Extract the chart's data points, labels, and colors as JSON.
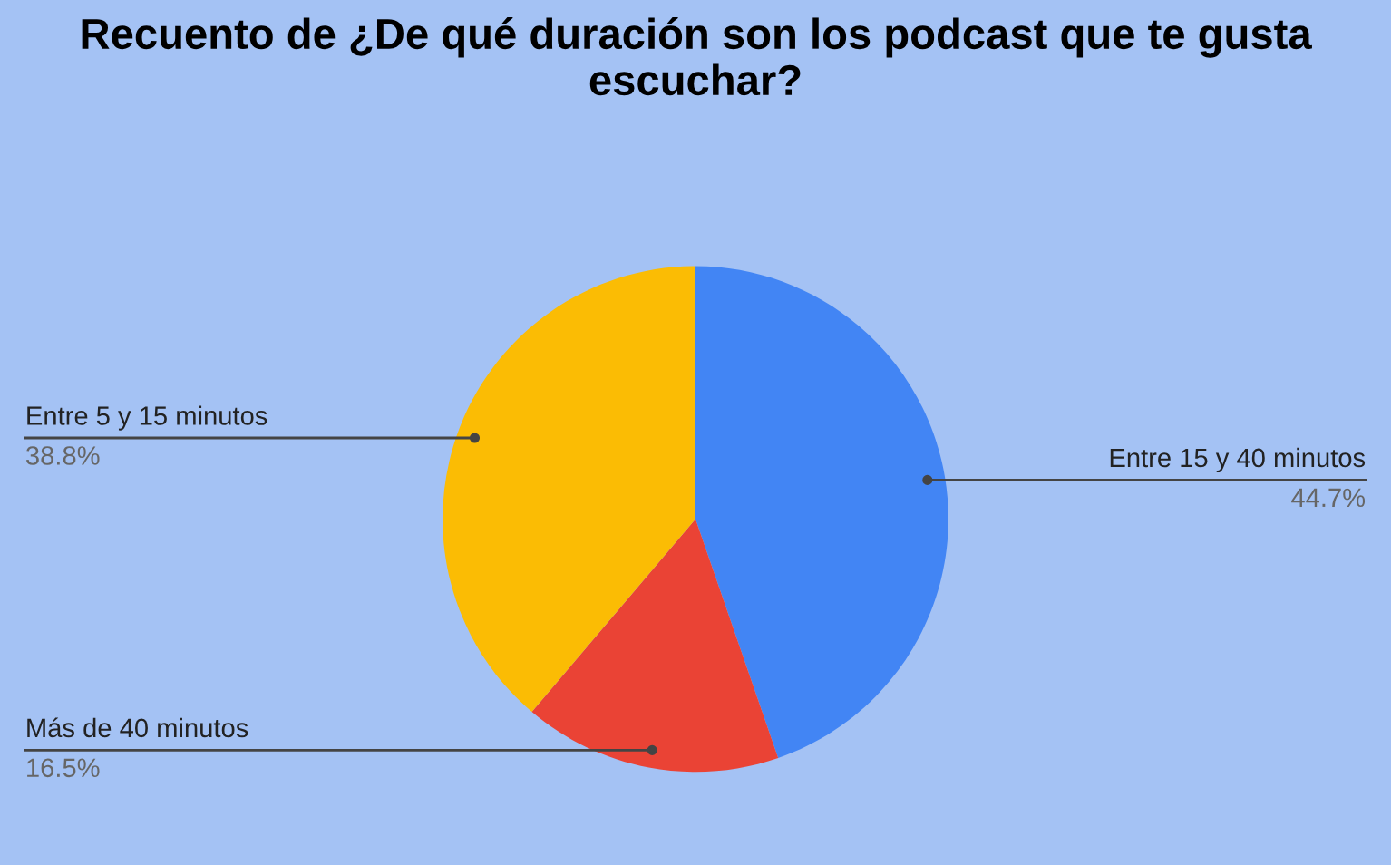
{
  "chart_data": {
    "type": "pie",
    "title": "Recuento de ¿De qué duración son los podcast que te gusta escuchar?",
    "categories": [
      "Entre 15 y 40 minutos",
      "Más de 40 minutos",
      "Entre 5 y 15 minutos"
    ],
    "values": [
      44.7,
      16.5,
      38.8
    ],
    "colors": [
      "#4285f4",
      "#ea4335",
      "#fbbc04"
    ],
    "value_labels": [
      "44.7%",
      "16.5%",
      "38.8%"
    ],
    "legend": false
  }
}
